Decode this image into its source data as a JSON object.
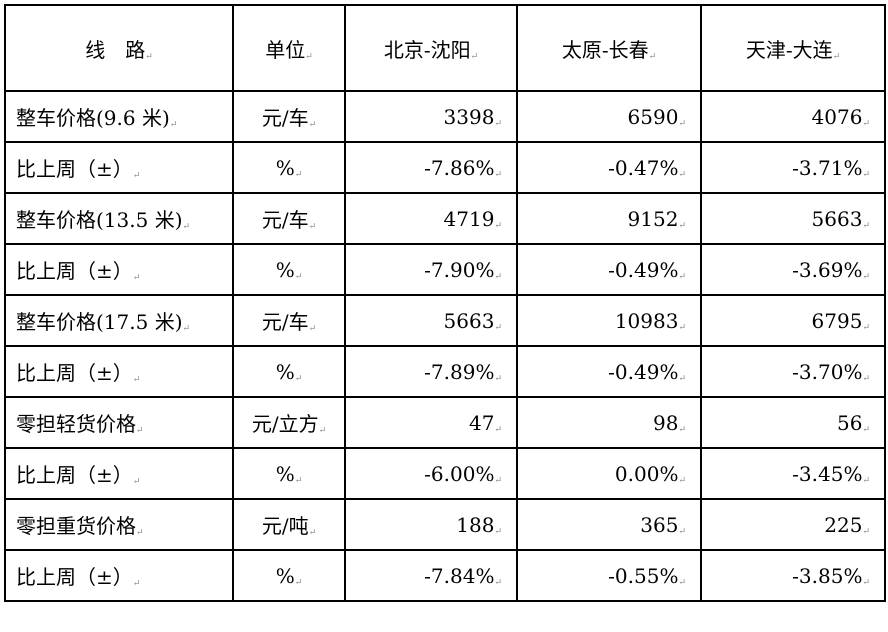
{
  "headers": [
    "线　路",
    "单位",
    "北京-沈阳",
    "太原-长春",
    "天津-大连"
  ],
  "rows": [
    {
      "label": "整车价格(9.6 米)",
      "unit": "元/车",
      "values": [
        "3398",
        "6590",
        "4076"
      ]
    },
    {
      "label": "比上周（±）",
      "unit": "%",
      "values": [
        "-7.86%",
        "-0.47%",
        "-3.71%"
      ]
    },
    {
      "label": "整车价格(13.5 米)",
      "unit": "元/车",
      "values": [
        "4719",
        "9152",
        "5663"
      ]
    },
    {
      "label": "比上周（±）",
      "unit": "%",
      "values": [
        "-7.90%",
        "-0.49%",
        "-3.69%"
      ]
    },
    {
      "label": "整车价格(17.5 米)",
      "unit": "元/车",
      "values": [
        "5663",
        "10983",
        "6795"
      ]
    },
    {
      "label": "比上周（±）",
      "unit": "%",
      "values": [
        "-7.89%",
        "-0.49%",
        "-3.70%"
      ]
    },
    {
      "label": "零担轻货价格",
      "unit": "元/立方",
      "values": [
        "47",
        "98",
        "56"
      ]
    },
    {
      "label": "比上周（±）",
      "unit": "%",
      "values": [
        "-6.00%",
        "0.00%",
        "-3.45%"
      ]
    },
    {
      "label": "零担重货价格",
      "unit": "元/吨",
      "values": [
        "188",
        "365",
        "225"
      ]
    },
    {
      "label": "比上周（±）",
      "unit": "%",
      "values": [
        "-7.84%",
        "-0.55%",
        "-3.85%"
      ]
    }
  ]
}
